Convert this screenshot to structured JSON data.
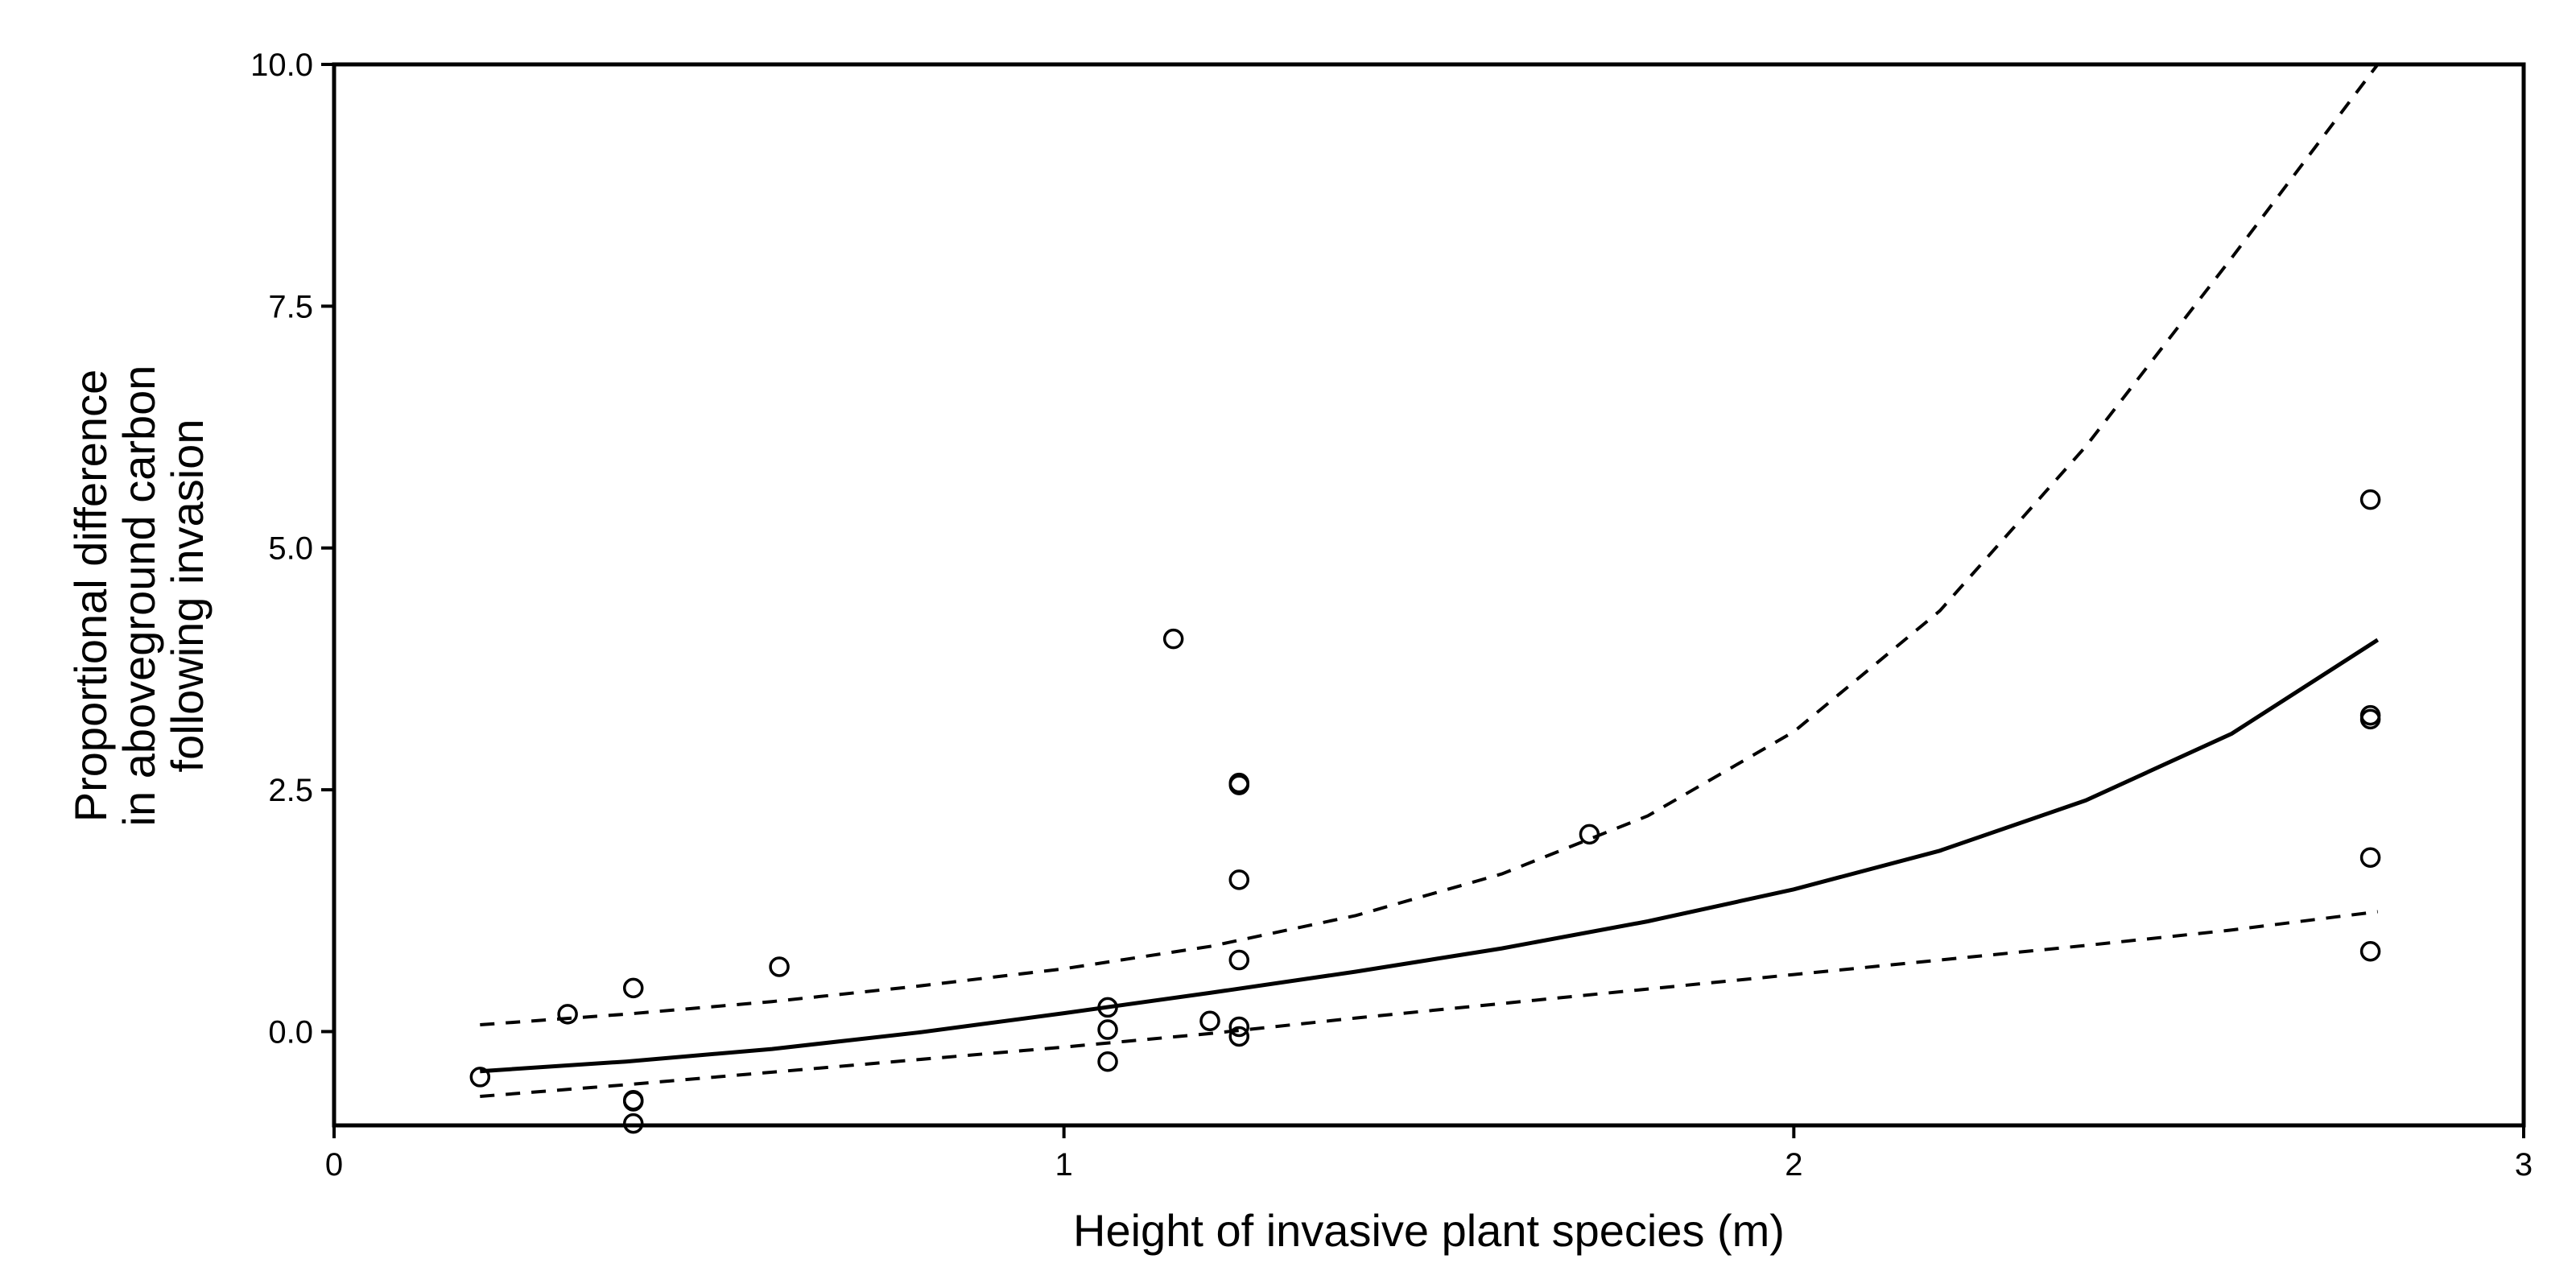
{
  "chart_data": {
    "type": "scatter",
    "title": "",
    "xlabel": "Height of invasive plant species (m)",
    "ylabel_lines": [
      "Proportional difference",
      "in aboveground carbon",
      "following invasion"
    ],
    "xlim": [
      0,
      3
    ],
    "ylim": [
      -0.97,
      10.0
    ],
    "x_ticks": [
      0,
      1,
      2,
      3
    ],
    "x_tick_labels": [
      "0",
      "1",
      "2",
      "3"
    ],
    "y_ticks": [
      0,
      2.5,
      5,
      7.5,
      10
    ],
    "y_tick_labels": [
      "0.0",
      "2.5",
      "5.0",
      "7.5",
      "10.0"
    ],
    "grid": false,
    "legend": "none",
    "points": [
      {
        "x": 0.2,
        "y": -0.47
      },
      {
        "x": 0.32,
        "y": 0.18
      },
      {
        "x": 0.41,
        "y": 0.45
      },
      {
        "x": 0.41,
        "y": -0.71
      },
      {
        "x": 0.41,
        "y": -0.72
      },
      {
        "x": 0.41,
        "y": -0.95
      },
      {
        "x": 0.61,
        "y": 0.67
      },
      {
        "x": 1.06,
        "y": 0.25
      },
      {
        "x": 1.06,
        "y": 0.02
      },
      {
        "x": 1.06,
        "y": -0.31
      },
      {
        "x": 1.15,
        "y": 4.06
      },
      {
        "x": 1.2,
        "y": 0.11
      },
      {
        "x": 1.24,
        "y": 2.55
      },
      {
        "x": 1.24,
        "y": 2.57
      },
      {
        "x": 1.24,
        "y": 1.57
      },
      {
        "x": 1.24,
        "y": 0.74
      },
      {
        "x": 1.24,
        "y": 0.05
      },
      {
        "x": 1.24,
        "y": -0.05
      },
      {
        "x": 1.72,
        "y": 2.04
      },
      {
        "x": 2.79,
        "y": 5.5
      },
      {
        "x": 2.79,
        "y": 3.23
      },
      {
        "x": 2.79,
        "y": 3.27
      },
      {
        "x": 2.79,
        "y": 1.8
      },
      {
        "x": 2.79,
        "y": 0.83
      }
    ],
    "series": [
      {
        "style": "solid",
        "x": [
          0.2,
          0.4,
          0.6,
          0.8,
          1.0,
          1.2,
          1.4,
          1.6,
          1.8,
          2.0,
          2.2,
          2.4,
          2.6,
          2.8
        ],
        "y": [
          -0.41,
          -0.31,
          -0.18,
          -0.01,
          0.19,
          0.4,
          0.62,
          0.86,
          1.14,
          1.47,
          1.87,
          2.39,
          3.08,
          4.05
        ]
      },
      {
        "style": "dashed",
        "x": [
          0.2,
          0.4,
          0.6,
          0.8,
          1.0,
          1.2,
          1.4,
          1.6,
          1.8,
          2.0,
          2.2,
          2.4,
          2.6,
          2.8
        ],
        "y": [
          0.07,
          0.18,
          0.31,
          0.47,
          0.65,
          0.88,
          1.2,
          1.63,
          2.23,
          3.1,
          4.35,
          6.05,
          8.0,
          10.0
        ]
      },
      {
        "style": "dashed",
        "x": [
          0.2,
          0.4,
          0.6,
          0.8,
          1.0,
          1.2,
          1.4,
          1.6,
          1.8,
          2.0,
          2.2,
          2.4,
          2.6,
          2.8
        ],
        "y": [
          -0.67,
          -0.55,
          -0.42,
          -0.29,
          -0.16,
          -0.02,
          0.14,
          0.29,
          0.44,
          0.59,
          0.74,
          0.89,
          1.05,
          1.24
        ]
      }
    ]
  }
}
